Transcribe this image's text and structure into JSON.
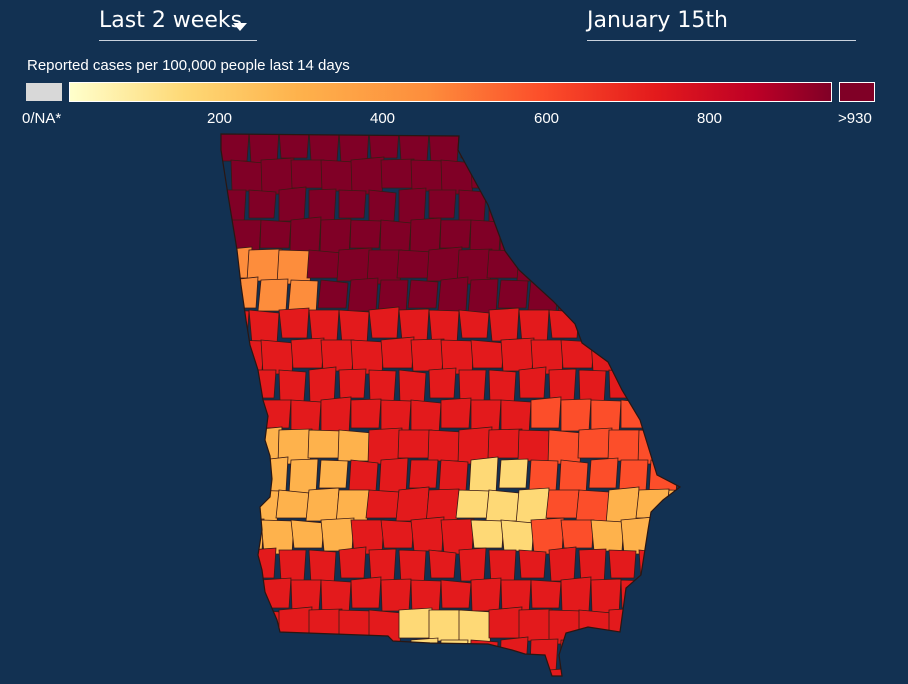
{
  "controls": {
    "period_label": "Last 2 weeks",
    "date_label": "January 15th"
  },
  "legend": {
    "title": "Reported cases per 100,000 people last 14 days",
    "na_label": "0/NA*",
    "max_label": ">930",
    "ticks": [
      "200",
      "400",
      "600",
      "800"
    ],
    "colors": {
      "na": "#d8d8d8",
      "ramp": [
        "#ffffcc",
        "#fed976",
        "#feb24c",
        "#fd8d3c",
        "#fc4e2a",
        "#e31a1c",
        "#bd0026",
        "#800026"
      ]
    }
  },
  "map": {
    "region": "Georgia",
    "unit": "county",
    "county_border_color": "#3a1a14",
    "background": "#123152"
  }
}
